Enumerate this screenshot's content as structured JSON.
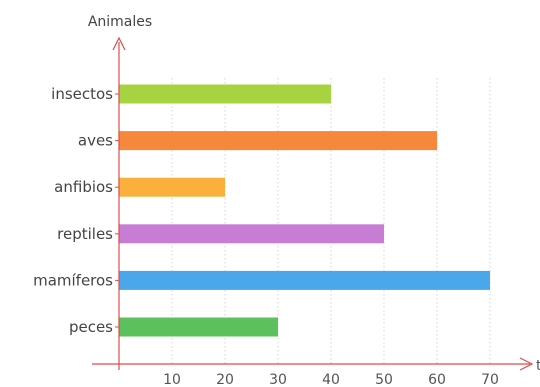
{
  "chart_data": {
    "type": "bar",
    "orientation": "horizontal",
    "ylabel": "Animales",
    "xlabel": "t",
    "categories": [
      "insectos",
      "aves",
      "anfibios",
      "reptiles",
      "mamíferos",
      "peces"
    ],
    "values": [
      40,
      60,
      20,
      50,
      70,
      30
    ],
    "colors": [
      "#a6d33f",
      "#f5883b",
      "#fbb03b",
      "#c77dd4",
      "#4aa8ea",
      "#5cc05c"
    ],
    "x_ticks": [
      10,
      20,
      30,
      40,
      50,
      60,
      70
    ],
    "xlim": [
      0,
      75
    ],
    "grid": "vertical dotted at ticks",
    "axis_color": "#e04b4b"
  }
}
